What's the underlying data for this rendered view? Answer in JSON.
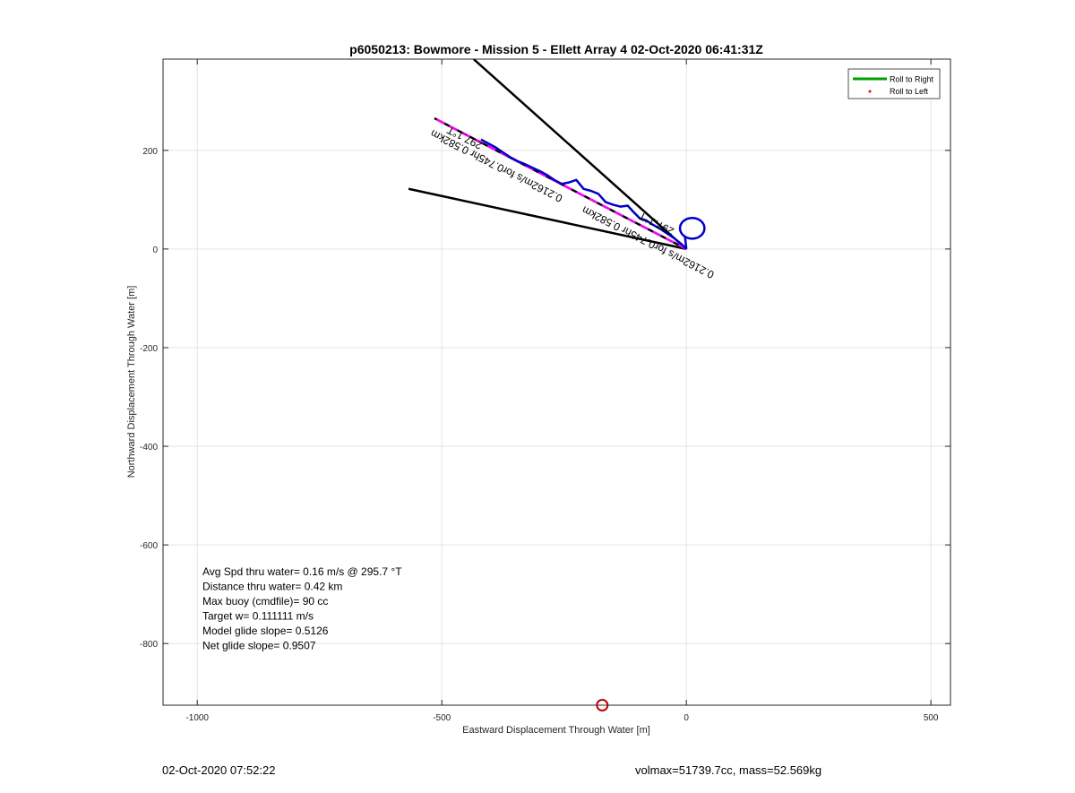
{
  "footer": {
    "timestamp": "02-Oct-2020 07:52:22",
    "vol_mass": "volmax=51739.7cc, mass=52.569kg"
  },
  "chart_data": {
    "type": "line",
    "title": "p6050213: Bowmore - Mission 5 - Ellett Array 4 02-Oct-2020 06:41:31Z",
    "xlabel": "Eastward Displacement Through Water [m]",
    "ylabel": "Northward Displacement Through Water [m]",
    "xlim": [
      -1070,
      540
    ],
    "ylim": [
      -925,
      385
    ],
    "xticks": [
      -1000,
      -500,
      0,
      500
    ],
    "yticks": [
      200,
      0,
      -200,
      -400,
      -600,
      -800
    ],
    "grid": true,
    "legend": {
      "position": "top-right",
      "entries": [
        {
          "label": "Roll to Right",
          "color": "#00a000",
          "style": "line"
        },
        {
          "label": "Roll to Left",
          "color": "#ff0000",
          "style": "dot"
        }
      ]
    },
    "colors": {
      "track": "#0000c8",
      "heading_line": "#ff00ff",
      "wedge": "#000000",
      "target_marker": "#c00000"
    },
    "wedge_lines": [
      {
        "name": "wedge-line-upper",
        "x": [
          0,
          -435
        ],
        "y": [
          0,
          385
        ]
      },
      {
        "name": "wedge-line-lower",
        "x": [
          0,
          -568
        ],
        "y": [
          0,
          122
        ]
      }
    ],
    "heading_line": {
      "x": [
        0,
        -515
      ],
      "y": [
        0,
        265
      ]
    },
    "track": {
      "x": [
        0,
        -10,
        -25,
        -40,
        -55,
        -70,
        -82,
        -95,
        -108,
        -120,
        -135,
        -150,
        -165,
        -180,
        -195,
        -210,
        -225,
        -240,
        -255,
        -270,
        -285,
        -300,
        -315,
        -330,
        -345,
        -360,
        -375,
        -390,
        -405,
        -420
      ],
      "y": [
        0,
        10,
        22,
        32,
        42,
        50,
        58,
        62,
        75,
        88,
        86,
        90,
        95,
        112,
        118,
        122,
        140,
        135,
        132,
        140,
        150,
        158,
        165,
        172,
        178,
        186,
        196,
        206,
        214,
        222
      ]
    },
    "loop": {
      "cx": 12,
      "cy": 42,
      "rx": 25,
      "ry": 21
    },
    "target_marker": {
      "x": -172,
      "y": -930
    },
    "annotations": [
      {
        "text": "297.1°T",
        "x": -450,
        "y": 232,
        "angle": 27
      },
      {
        "text": "0.2162m/s for0.745hr 0.582km",
        "x": -385,
        "y": 175,
        "angle": 27
      },
      {
        "text": "297.1°T",
        "x": -58,
        "y": 58,
        "angle": 27
      },
      {
        "text": "0.2162m/s for0.745hr 0.582km",
        "x": -75,
        "y": 20,
        "angle": 27
      }
    ],
    "stats": [
      "Avg Spd thru water=  0.16 m/s @ 295.7 °T",
      "Distance thru water=  0.42 km",
      "Max buoy (cmdfile)= 90 cc",
      "Target w= 0.111111 m/s",
      "Model glide slope= 0.5126",
      "Net glide slope= 0.9507"
    ]
  }
}
